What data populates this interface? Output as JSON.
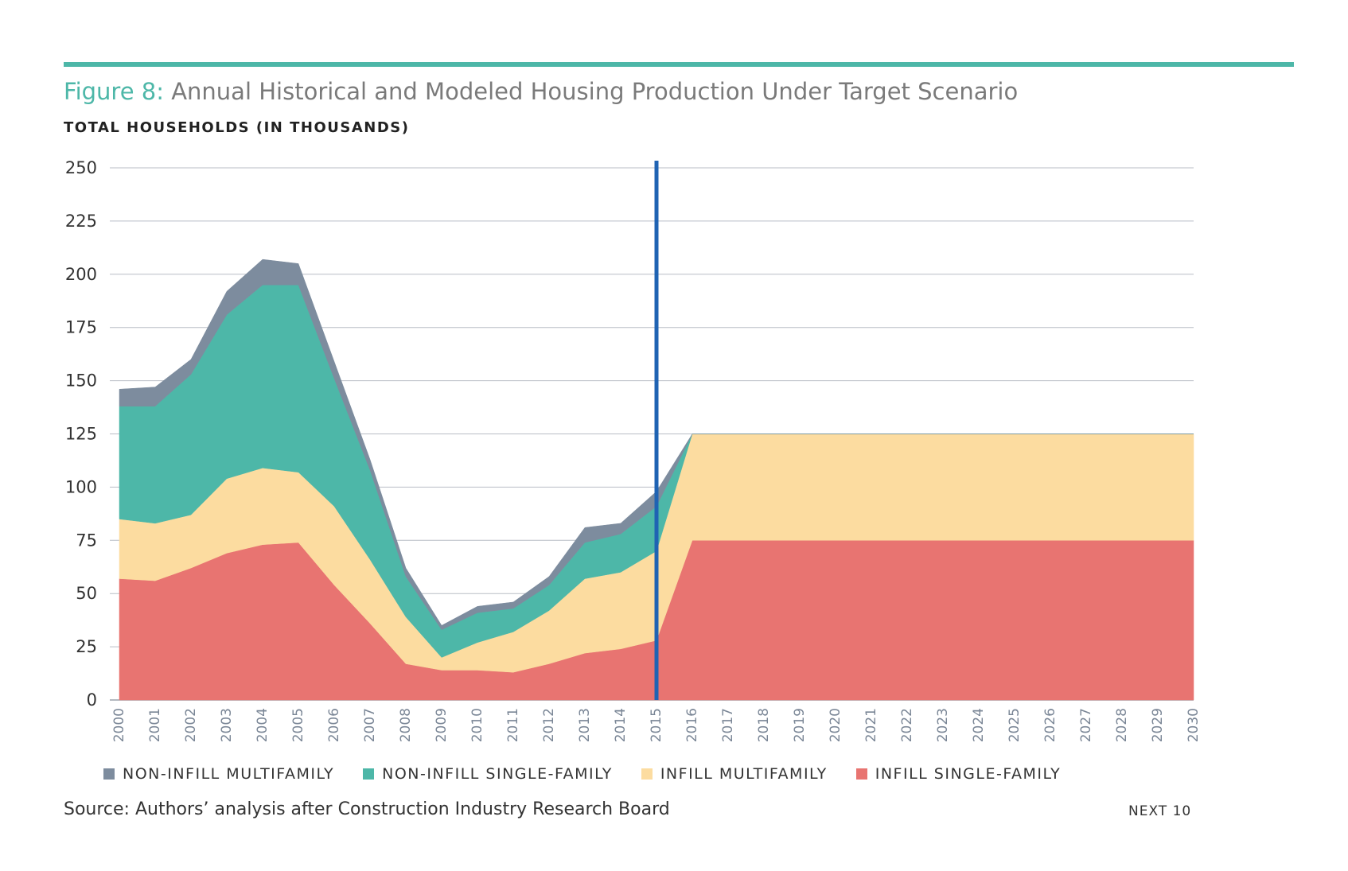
{
  "header": {
    "figure_label": "Figure 8:",
    "title_text": "Annual Historical and Modeled Housing Production Under Target Scenario"
  },
  "colors": {
    "accent": "#4db7a8",
    "non_infill_multifamily": "#7d8c9e",
    "non_infill_single_family": "#4db7a8",
    "infill_multifamily": "#fcdca0",
    "infill_single_family": "#e87471",
    "marker_line": "#1f63b3",
    "grid": "#b9bec6"
  },
  "footer": {
    "source": "Source: Authors’ analysis after Construction Industry Research Board",
    "brand": "NEXT 10"
  },
  "chart_data": {
    "type": "area",
    "stacked": true,
    "ylabel": "TOTAL HOUSEHOLDS (IN THOUSANDS)",
    "ylim": [
      0,
      250
    ],
    "yticks": [
      0,
      25,
      50,
      75,
      100,
      125,
      150,
      175,
      200,
      225,
      250
    ],
    "grid": true,
    "legend_position": "bottom",
    "x": [
      "2000",
      "2001",
      "2002",
      "2003",
      "2004",
      "2005",
      "2006",
      "2007",
      "2008",
      "2009",
      "2010",
      "2011",
      "2012",
      "2013",
      "2014",
      "2015",
      "2016",
      "2017",
      "2018",
      "2019",
      "2020",
      "2021",
      "2022",
      "2023",
      "2024",
      "2025",
      "2026",
      "2027",
      "2028",
      "2029",
      "2030"
    ],
    "vertical_marker": "2015",
    "series": [
      {
        "name": "INFILL SINGLE-FAMILY",
        "values": [
          57,
          56,
          62,
          69,
          73,
          74,
          54,
          36,
          17,
          14,
          14,
          13,
          17,
          22,
          24,
          28,
          75,
          75,
          75,
          75,
          75,
          75,
          75,
          75,
          75,
          75,
          75,
          75,
          75,
          75,
          75
        ]
      },
      {
        "name": "INFILL MULTIFAMILY",
        "values": [
          28,
          27,
          25,
          35,
          36,
          33,
          37,
          30,
          22,
          6,
          13,
          19,
          25,
          35,
          36,
          42,
          50,
          50,
          50,
          50,
          50,
          50,
          50,
          50,
          50,
          50,
          50,
          50,
          50,
          50,
          50
        ]
      },
      {
        "name": "NON-INFILL SINGLE-FAMILY",
        "values": [
          53,
          55,
          66,
          77,
          86,
          88,
          60,
          42,
          19,
          13,
          14,
          11,
          12,
          17,
          18,
          21,
          0,
          0,
          0,
          0,
          0,
          0,
          0,
          0,
          0,
          0,
          0,
          0,
          0,
          0,
          0
        ]
      },
      {
        "name": "NON-INFILL MULTIFAMILY",
        "values": [
          8,
          9,
          7,
          11,
          12,
          10,
          8,
          5,
          4,
          2,
          3,
          3,
          4,
          7,
          5,
          7,
          0,
          0,
          0,
          0,
          0,
          0,
          0,
          0,
          0,
          0,
          0,
          0,
          0,
          0,
          0
        ]
      }
    ]
  }
}
